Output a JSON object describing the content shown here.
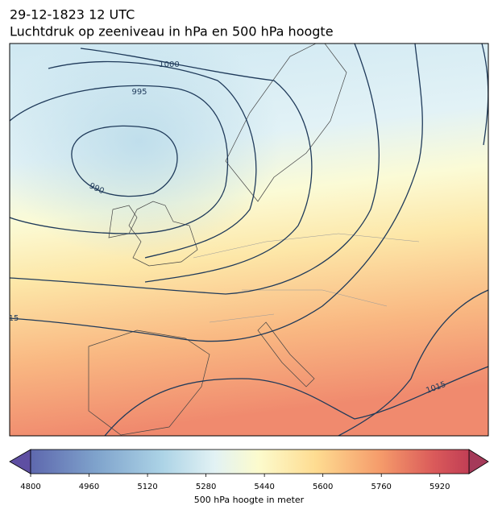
{
  "title": "29-12-1823 12 UTC",
  "subtitle": "Luchtdruk op zeeniveau in hPa en 500 hPa hoogte",
  "map": {
    "contour_labels": [
      1000,
      995,
      990,
      1015,
      "15"
    ]
  },
  "colorbar": {
    "label": "500 hPa hoogte in meter",
    "lim": [
      4800,
      6000
    ],
    "ticks": [
      4800,
      4960,
      5120,
      5280,
      5440,
      5600,
      5760,
      5920
    ]
  }
}
